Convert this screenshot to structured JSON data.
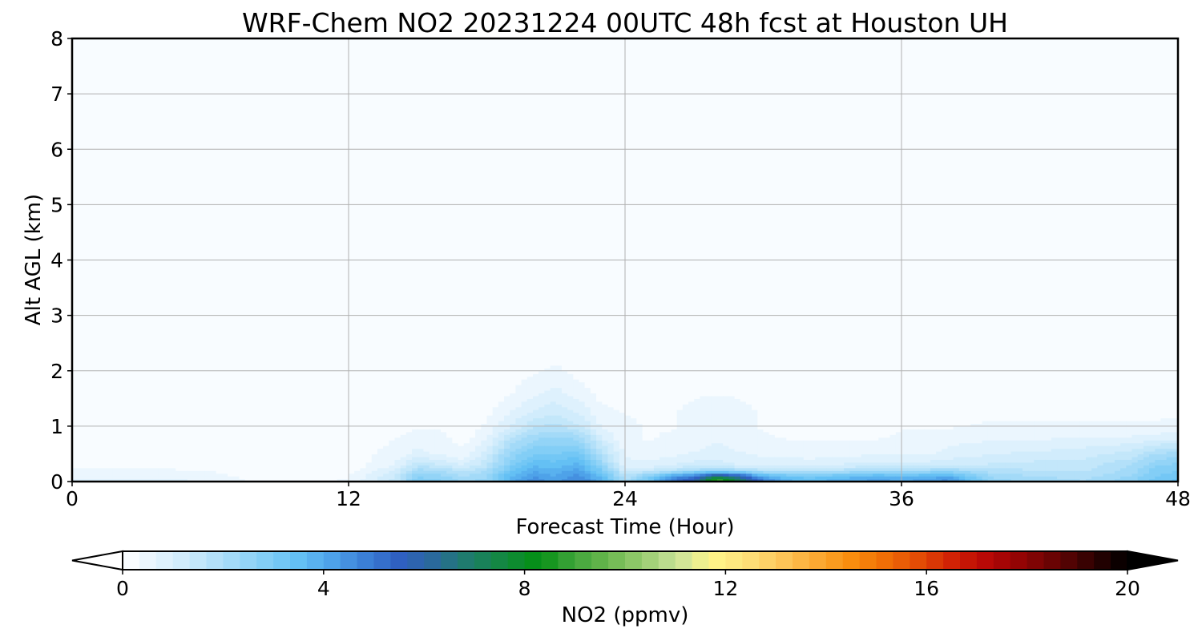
{
  "chart_data": {
    "type": "heatmap",
    "title": "WRF-Chem NO2  20231224 00UTC 48h fcst at Houston UH",
    "xlabel": "Forecast Time (Hour)",
    "ylabel": "Alt AGL (km)",
    "x_ticks": [
      0,
      12,
      24,
      36,
      48
    ],
    "y_ticks": [
      0,
      1,
      2,
      3,
      4,
      5,
      6,
      7,
      8
    ],
    "xlim": [
      0,
      48
    ],
    "ylim": [
      0,
      8
    ],
    "grid": true,
    "colorbar": {
      "label": "NO2  (ppmv)",
      "ticks": [
        0,
        4,
        8,
        12,
        16,
        20
      ],
      "range": [
        0,
        20
      ],
      "extend": "both",
      "orientation": "horizontal",
      "levels": 60,
      "colors": [
        "#ffffff",
        "#e3f3fd",
        "#c9e9fb",
        "#a8dcf8",
        "#87cff6",
        "#66c2f5",
        "#4fa3ea",
        "#3b7fd6",
        "#2f5fc0",
        "#2a6a9a",
        "#1e7d6a",
        "#12883e",
        "#049013",
        "#3ea43a",
        "#6ab84e",
        "#98cc70",
        "#c9e39a",
        "#fff58a",
        "#fee07a",
        "#fdc75a",
        "#fbaa34",
        "#f98e0e",
        "#f06e06",
        "#e24a05",
        "#d01f05",
        "#b50606",
        "#8e0404",
        "#620303",
        "#2e0202",
        "#000000"
      ]
    },
    "field": {
      "units": "ppmv",
      "x": [
        0,
        2,
        4,
        6,
        8,
        10,
        12,
        14,
        15,
        16,
        17,
        18,
        19,
        20,
        21,
        22,
        23,
        24,
        25,
        26,
        27,
        28,
        29,
        30,
        31,
        32,
        33,
        34,
        35,
        36,
        37,
        38,
        40,
        42,
        44,
        46,
        47,
        48
      ],
      "y": [
        0,
        0.1,
        0.2,
        0.3,
        0.5,
        0.8,
        1.0,
        1.3,
        1.6,
        2.0,
        2.5,
        3.0
      ],
      "z": [
        [
          0.8,
          0.8,
          0.8,
          0.6,
          0.3,
          0.2,
          0.4,
          1.5,
          3.0,
          2.8,
          2.2,
          2.5,
          3.8,
          4.6,
          4.2,
          4.8,
          3.8,
          2.0,
          3.2,
          4.8,
          6.0,
          9.6,
          7.5,
          5.0,
          3.8,
          3.6,
          3.8,
          4.0,
          4.2,
          4.0,
          4.2,
          4.6,
          2.5,
          2.2,
          2.0,
          2.6,
          3.2,
          3.5
        ],
        [
          0.6,
          0.6,
          0.6,
          0.5,
          0.2,
          0.2,
          0.3,
          1.3,
          2.6,
          2.5,
          2.0,
          2.3,
          3.6,
          4.3,
          4.0,
          4.5,
          3.5,
          1.8,
          2.8,
          4.2,
          5.0,
          7.0,
          5.8,
          4.0,
          3.4,
          3.2,
          3.4,
          3.6,
          3.8,
          3.6,
          3.8,
          4.0,
          2.2,
          2.0,
          1.9,
          2.4,
          3.0,
          3.2
        ],
        [
          0.4,
          0.4,
          0.4,
          0.3,
          0.1,
          0.1,
          0.2,
          1.0,
          2.2,
          2.0,
          1.6,
          2.0,
          3.2,
          4.0,
          3.8,
          4.2,
          3.0,
          1.2,
          1.4,
          1.8,
          2.2,
          2.6,
          2.2,
          1.8,
          1.6,
          1.6,
          1.8,
          2.0,
          2.2,
          2.0,
          2.2,
          2.4,
          1.8,
          1.7,
          1.6,
          2.2,
          2.8,
          3.0
        ],
        [
          0.2,
          0.2,
          0.2,
          0.2,
          0.1,
          0.0,
          0.1,
          0.7,
          1.6,
          1.4,
          1.0,
          1.6,
          2.8,
          3.6,
          3.5,
          3.8,
          2.4,
          0.8,
          0.8,
          1.0,
          1.2,
          1.2,
          1.0,
          0.9,
          0.9,
          0.9,
          1.0,
          1.1,
          1.2,
          1.2,
          1.2,
          1.3,
          1.4,
          1.5,
          1.5,
          2.0,
          2.6,
          2.8
        ],
        [
          0.1,
          0.1,
          0.1,
          0.1,
          0.0,
          0.0,
          0.1,
          0.5,
          0.8,
          0.6,
          0.4,
          1.2,
          2.4,
          3.0,
          3.0,
          3.2,
          1.8,
          0.6,
          0.5,
          0.6,
          0.7,
          0.8,
          0.7,
          0.6,
          0.6,
          0.5,
          0.6,
          0.6,
          0.6,
          0.6,
          0.6,
          0.8,
          1.0,
          1.1,
          1.2,
          1.5,
          2.0,
          2.2
        ],
        [
          0.0,
          0.0,
          0.0,
          0.0,
          0.0,
          0.0,
          0.1,
          0.3,
          0.5,
          0.4,
          0.2,
          0.6,
          1.6,
          2.2,
          2.4,
          2.2,
          1.0,
          0.4,
          0.3,
          0.4,
          0.5,
          0.6,
          0.5,
          0.4,
          0.3,
          0.3,
          0.3,
          0.3,
          0.3,
          0.4,
          0.4,
          0.5,
          0.6,
          0.6,
          0.7,
          0.7,
          0.8,
          0.9
        ],
        [
          0.0,
          0.0,
          0.0,
          0.0,
          0.0,
          0.0,
          0.1,
          0.2,
          0.3,
          0.3,
          0.1,
          0.4,
          1.0,
          1.6,
          1.8,
          1.4,
          0.6,
          0.4,
          0.3,
          0.3,
          0.4,
          0.5,
          0.4,
          0.3,
          0.2,
          0.2,
          0.2,
          0.2,
          0.2,
          0.3,
          0.3,
          0.3,
          0.4,
          0.4,
          0.4,
          0.4,
          0.4,
          0.5
        ],
        [
          0.0,
          0.0,
          0.0,
          0.0,
          0.0,
          0.0,
          0.1,
          0.2,
          0.2,
          0.2,
          0.1,
          0.2,
          0.6,
          1.0,
          1.2,
          0.9,
          0.4,
          0.3,
          0.3,
          0.3,
          0.4,
          0.5,
          0.4,
          0.3,
          0.2,
          0.1,
          0.1,
          0.1,
          0.1,
          0.2,
          0.2,
          0.2,
          0.2,
          0.2,
          0.2,
          0.2,
          0.2,
          0.2
        ],
        [
          0.0,
          0.0,
          0.0,
          0.0,
          0.0,
          0.0,
          0.1,
          0.2,
          0.1,
          0.1,
          0.0,
          0.1,
          0.3,
          0.6,
          0.8,
          0.5,
          0.2,
          0.3,
          0.2,
          0.2,
          0.3,
          0.3,
          0.3,
          0.2,
          0.1,
          0.1,
          0.0,
          0.0,
          0.0,
          0.1,
          0.1,
          0.1,
          0.1,
          0.1,
          0.1,
          0.1,
          0.1,
          0.1
        ],
        [
          0.0,
          0.0,
          0.0,
          0.0,
          0.0,
          0.0,
          0.1,
          0.1,
          0.1,
          0.0,
          0.0,
          0.0,
          0.1,
          0.3,
          0.4,
          0.2,
          0.1,
          0.2,
          0.1,
          0.1,
          0.1,
          0.1,
          0.1,
          0.1,
          0.0,
          0.0,
          0.0,
          0.0,
          0.0,
          0.0,
          0.0,
          0.0,
          0.0,
          0.0,
          0.0,
          0.0,
          0.0,
          0.0
        ],
        [
          0.0,
          0.0,
          0.0,
          0.0,
          0.0,
          0.0,
          0.1,
          0.1,
          0.0,
          0.0,
          0.0,
          0.0,
          0.0,
          0.1,
          0.1,
          0.1,
          0.0,
          0.1,
          0.0,
          0.0,
          0.0,
          0.0,
          0.0,
          0.0,
          0.0,
          0.0,
          0.0,
          0.0,
          0.0,
          0.0,
          0.0,
          0.0,
          0.0,
          0.0,
          0.0,
          0.0,
          0.0,
          0.0
        ],
        [
          0.0,
          0.0,
          0.0,
          0.0,
          0.0,
          0.0,
          0.0,
          0.0,
          0.0,
          0.0,
          0.0,
          0.0,
          0.0,
          0.0,
          0.0,
          0.0,
          0.0,
          0.0,
          0.0,
          0.0,
          0.0,
          0.0,
          0.0,
          0.0,
          0.0,
          0.0,
          0.0,
          0.0,
          0.0,
          0.0,
          0.0,
          0.0,
          0.0,
          0.0,
          0.0,
          0.0,
          0.0,
          0.0
        ]
      ],
      "background_value": 0.1
    }
  }
}
